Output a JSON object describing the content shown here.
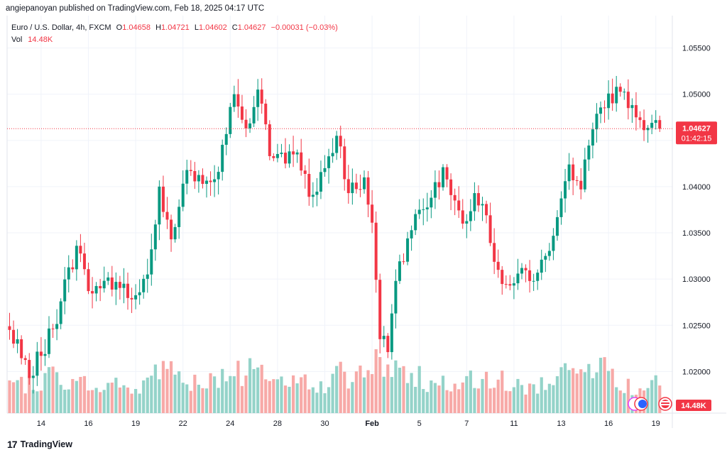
{
  "publisher": "angiepanoyan published on TradingView.com, Feb 18, 2025 04:17 UTC",
  "legend": {
    "symbol": "Euro / U.S. Dollar, 4h, FXCM",
    "open_label": "O",
    "open": "1.04658",
    "high_label": "H",
    "high": "1.04721",
    "low_label": "L",
    "low": "1.04602",
    "close_label": "C",
    "close": "1.04627",
    "change": "−0.00031 (−0.03%)"
  },
  "volume_legend": {
    "label": "Vol",
    "value": "14.48K"
  },
  "price_badge": {
    "price": "1.04627",
    "countdown": "01:42:15"
  },
  "volume_badge": "14.48K",
  "footer": {
    "logo": "17",
    "brand": "TradingView"
  },
  "colors": {
    "up": "#089981",
    "down": "#f23645",
    "up_volume": "#94d3c9",
    "down_volume": "#f7a9a7",
    "grid": "#f0f3fa"
  },
  "icons": [
    "flag-icon",
    "us-flag-icon"
  ],
  "chart_data": {
    "type": "candlestick",
    "ylim": [
      1.0155,
      1.0585
    ],
    "y_ticks": [
      "1.05500",
      "1.05000",
      "1.04500",
      "1.04000",
      "1.03500",
      "1.03000",
      "1.02500",
      "1.02000"
    ],
    "y_tick_values": [
      1.055,
      1.05,
      1.045,
      1.04,
      1.035,
      1.03,
      1.025,
      1.02
    ],
    "x_ticks": [
      {
        "label": "14",
        "bar": 8
      },
      {
        "label": "16",
        "bar": 20
      },
      {
        "label": "19",
        "bar": 32
      },
      {
        "label": "22",
        "bar": 44
      },
      {
        "label": "24",
        "bar": 56
      },
      {
        "label": "28",
        "bar": 68
      },
      {
        "label": "30",
        "bar": 80
      },
      {
        "label": "Feb",
        "bar": 92
      },
      {
        "label": "5",
        "bar": 104
      },
      {
        "label": "7",
        "bar": 116
      },
      {
        "label": "11",
        "bar": 128
      },
      {
        "label": "13",
        "bar": 140
      },
      {
        "label": "16",
        "bar": 152
      },
      {
        "label": "19",
        "bar": 164
      }
    ],
    "bars_max": 167,
    "last_price": 1.04627,
    "anchors": [
      [
        0,
        1.0245,
        1.0
      ],
      [
        5,
        1.0193,
        0.9
      ],
      [
        11,
        1.0246,
        1.3
      ],
      [
        17,
        1.0336,
        0.9
      ],
      [
        20,
        1.0287,
        1.1
      ],
      [
        23,
        1.029,
        0.8
      ],
      [
        27,
        1.0297,
        1.1
      ],
      [
        31,
        1.0278,
        0.6
      ],
      [
        35,
        1.0305,
        1.2
      ],
      [
        38,
        1.04,
        1.4
      ],
      [
        41,
        1.0343,
        1.3
      ],
      [
        45,
        1.0418,
        1.2
      ],
      [
        49,
        1.0403,
        0.9
      ],
      [
        53,
        1.0416,
        1.2
      ],
      [
        57,
        1.05,
        1.5
      ],
      [
        60,
        1.0463,
        1.3
      ],
      [
        63,
        1.0505,
        1.4
      ],
      [
        66,
        1.0433,
        1.3
      ],
      [
        70,
        1.0425,
        0.9
      ],
      [
        73,
        1.0437,
        1.0
      ],
      [
        76,
        1.0389,
        1.0
      ],
      [
        80,
        1.042,
        0.8
      ],
      [
        83,
        1.0455,
        1.4
      ],
      [
        86,
        1.0393,
        1.1
      ],
      [
        90,
        1.041,
        1.3
      ],
      [
        92,
        1.0361,
        1.3
      ],
      [
        94,
        1.0235,
        1.9
      ],
      [
        96,
        1.0221,
        1.5
      ],
      [
        98,
        1.0298,
        1.6
      ],
      [
        101,
        1.0344,
        1.0
      ],
      [
        104,
        1.0375,
        1.2
      ],
      [
        107,
        1.0388,
        0.9
      ],
      [
        110,
        1.0421,
        1.0
      ],
      [
        113,
        1.0385,
        0.9
      ],
      [
        115,
        1.036,
        0.9
      ],
      [
        118,
        1.0393,
        1.1
      ],
      [
        121,
        1.0369,
        1.2
      ],
      [
        124,
        1.031,
        1.1
      ],
      [
        127,
        1.0293,
        0.9
      ],
      [
        130,
        1.0312,
        0.8
      ],
      [
        133,
        1.0298,
        0.8
      ],
      [
        136,
        1.0325,
        1.1
      ],
      [
        139,
        1.0367,
        1.1
      ],
      [
        142,
        1.0424,
        1.4
      ],
      [
        145,
        1.0397,
        1.2
      ],
      [
        148,
        1.0462,
        1.3
      ],
      [
        151,
        1.0485,
        1.4
      ],
      [
        154,
        1.0508,
        1.2
      ],
      [
        157,
        1.0485,
        0.9
      ],
      [
        160,
        1.0472,
        0.8
      ],
      [
        163,
        1.0469,
        0.9
      ],
      [
        165,
        1.04627,
        1.0
      ]
    ]
  }
}
